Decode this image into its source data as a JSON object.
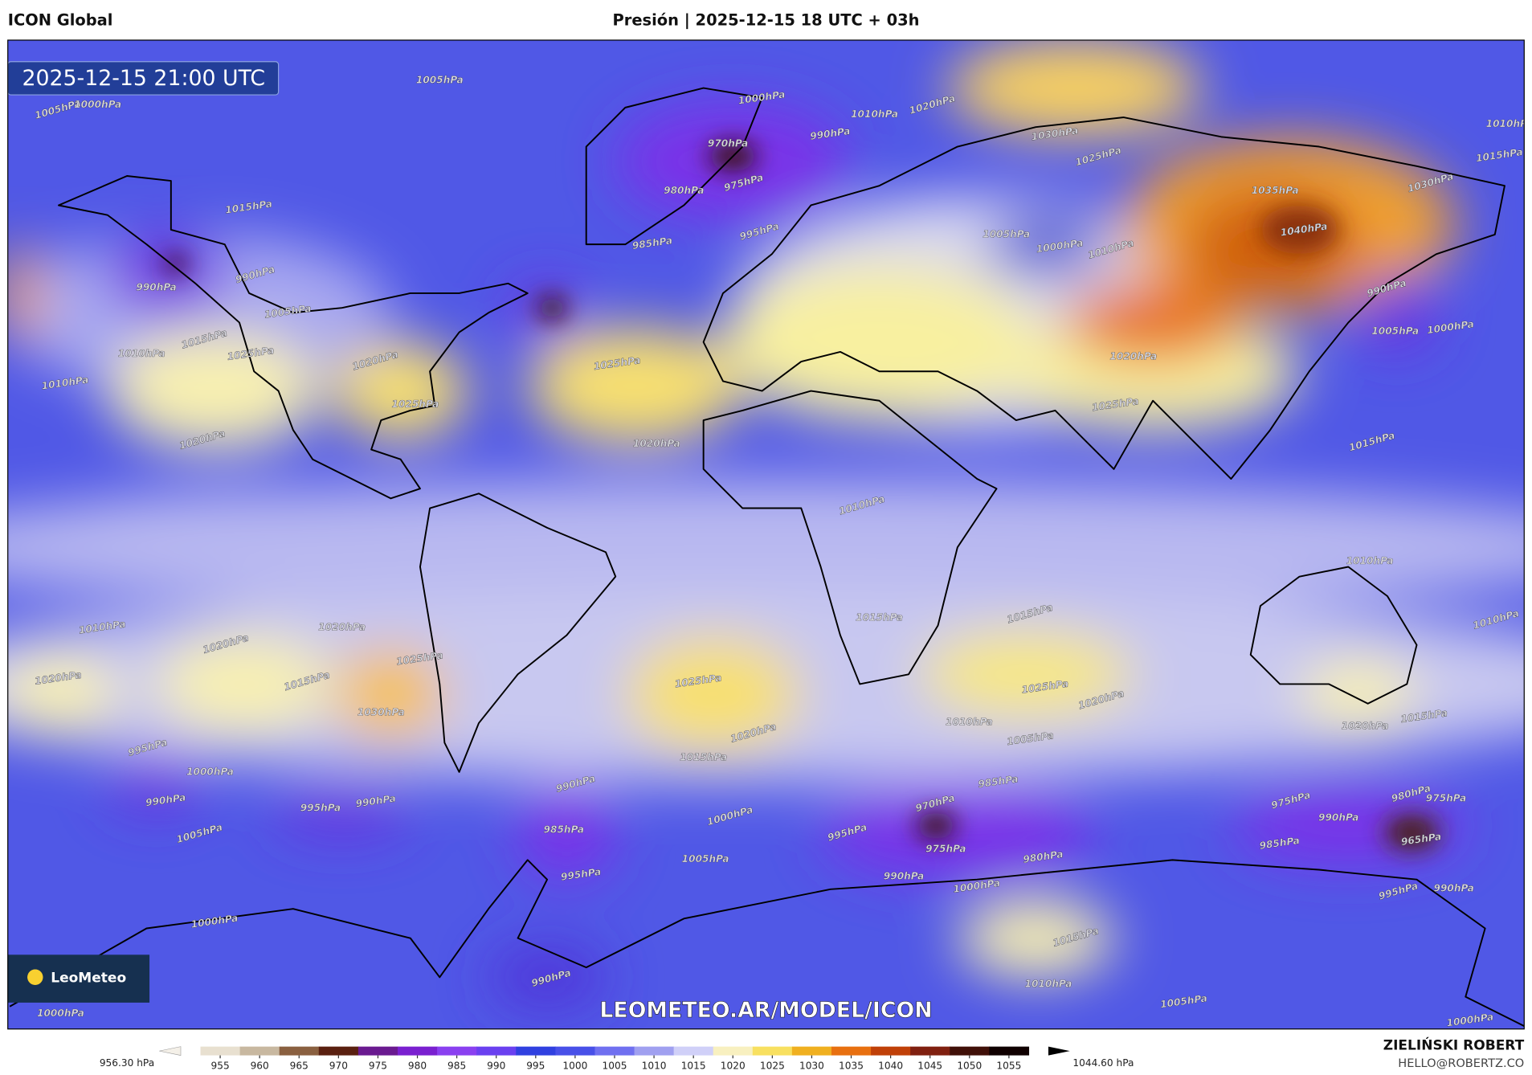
{
  "header": {
    "model": "ICON Global",
    "title": "Presión | 2025-12-15 18 UTC + 03h"
  },
  "map": {
    "valid_time": "2025-12-15 21:00 UTC",
    "watermark": "LEOMETEO.AR/MODEL/ICON",
    "logo": "LeoMeteo",
    "isobar_labels": [
      "1005hPa",
      "1000hPa",
      "1020hPa",
      "1010hPa",
      "1030hPa",
      "1025hPa",
      "1010hPa",
      "1015hPa",
      "1030hPa",
      "970hPa",
      "990hPa",
      "975hPa",
      "980hPa",
      "985hPa",
      "995hPa",
      "1005hPa",
      "1000hPa",
      "1010hPa",
      "1035hPa",
      "1040hPa",
      "990hPa",
      "1005hPa",
      "1000hPa",
      "1005hPa",
      "1000hPa",
      "1015hPa",
      "990hPa",
      "990hPa",
      "1005hPa",
      "1015hPa",
      "1010hPa",
      "1025hPa",
      "1020hPa",
      "1025hPa",
      "1010hPa",
      "1020hPa",
      "1020hPa",
      "1025hPa",
      "1015hPa",
      "1020hPa",
      "1025hPa",
      "1010hPa",
      "1010hPa",
      "1010hPa",
      "1020hPa",
      "1020hPa",
      "1025hPa",
      "1015hPa",
      "1030hPa",
      "1020hPa",
      "1015hPa",
      "1015hPa",
      "1025hPa",
      "1020hPa",
      "1015hPa",
      "1025hPa",
      "1020hPa",
      "1010hPa",
      "1005hPa",
      "1010hPa",
      "1020hPa",
      "1015hPa",
      "995hPa",
      "1000hPa",
      "990hPa",
      "1005hPa",
      "995hPa",
      "990hPa",
      "990hPa",
      "985hPa",
      "995hPa",
      "1000hPa",
      "1005hPa",
      "985hPa",
      "970hPa",
      "975hPa",
      "980hPa",
      "995hPa",
      "990hPa",
      "1000hPa",
      "975hPa",
      "990hPa",
      "985hPa",
      "980hPa",
      "975hPa",
      "965hPa",
      "995hPa",
      "990hPa",
      "1000hPa",
      "1015hPa",
      "1010hPa",
      "1005hPa",
      "990hPa",
      "1000hPa",
      "1000hPa"
    ]
  },
  "colorbar": {
    "min_label": "956.30 hPa",
    "max_label": "1044.60 hPa",
    "lim": [
      950,
      1060
    ],
    "ticks": [
      955,
      960,
      965,
      970,
      975,
      980,
      985,
      990,
      995,
      1000,
      1005,
      1010,
      1015,
      1020,
      1025,
      1030,
      1035,
      1040,
      1045,
      1050,
      1055
    ],
    "colors": [
      "#e8e0d0",
      "#c8b8a0",
      "#8a6040",
      "#5a2010",
      "#6a1a90",
      "#7a20d0",
      "#8a40f0",
      "#6a40f0",
      "#3040e0",
      "#4850e8",
      "#7070f0",
      "#a0a0f0",
      "#d0d0f8",
      "#f8f0c0",
      "#f8e060",
      "#f0b020",
      "#e87010",
      "#c04008",
      "#802010",
      "#401008",
      "#100000"
    ]
  },
  "credits": {
    "author": "ZIELIŃSKI ROBERT",
    "email": "HELLO@ROBERTZ.CO"
  }
}
